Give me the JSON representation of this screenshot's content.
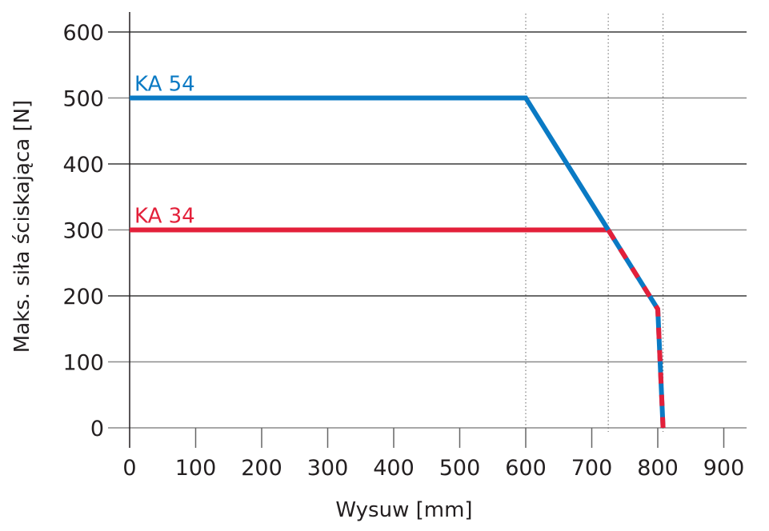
{
  "chart_data": {
    "type": "line",
    "title": "",
    "xlabel": "Wysuw [mm]",
    "ylabel": "Maks. siła ściskająca [N]",
    "xlim": [
      0,
      930
    ],
    "ylim": [
      0,
      600
    ],
    "x_ticks": [
      0,
      100,
      200,
      300,
      400,
      500,
      600,
      700,
      800,
      900
    ],
    "y_ticks": [
      0,
      100,
      200,
      300,
      400,
      500,
      600
    ],
    "grid": {
      "horizontal": true,
      "vertical": false
    },
    "reference_lines_x": [
      600,
      725,
      808
    ],
    "series": [
      {
        "name": "KA 54",
        "color": "#0a7ac4",
        "points": [
          [
            0,
            500
          ],
          [
            600,
            500
          ],
          [
            725,
            300
          ],
          [
            800,
            180
          ],
          [
            808,
            0
          ]
        ]
      },
      {
        "name": "KA 34",
        "color": "#e3203a",
        "points": [
          [
            0,
            300
          ],
          [
            725,
            300
          ],
          [
            800,
            180
          ],
          [
            808,
            0
          ]
        ]
      }
    ],
    "shared_segment_note": "From x=725 onward both series coincide (drawn red/blue dashed)",
    "legend_position": "inline labels above each series at x=0"
  },
  "colors": {
    "ka54": "#0a7ac4",
    "ka34": "#e3203a",
    "grid": "#808080",
    "axis": "#231f20"
  }
}
